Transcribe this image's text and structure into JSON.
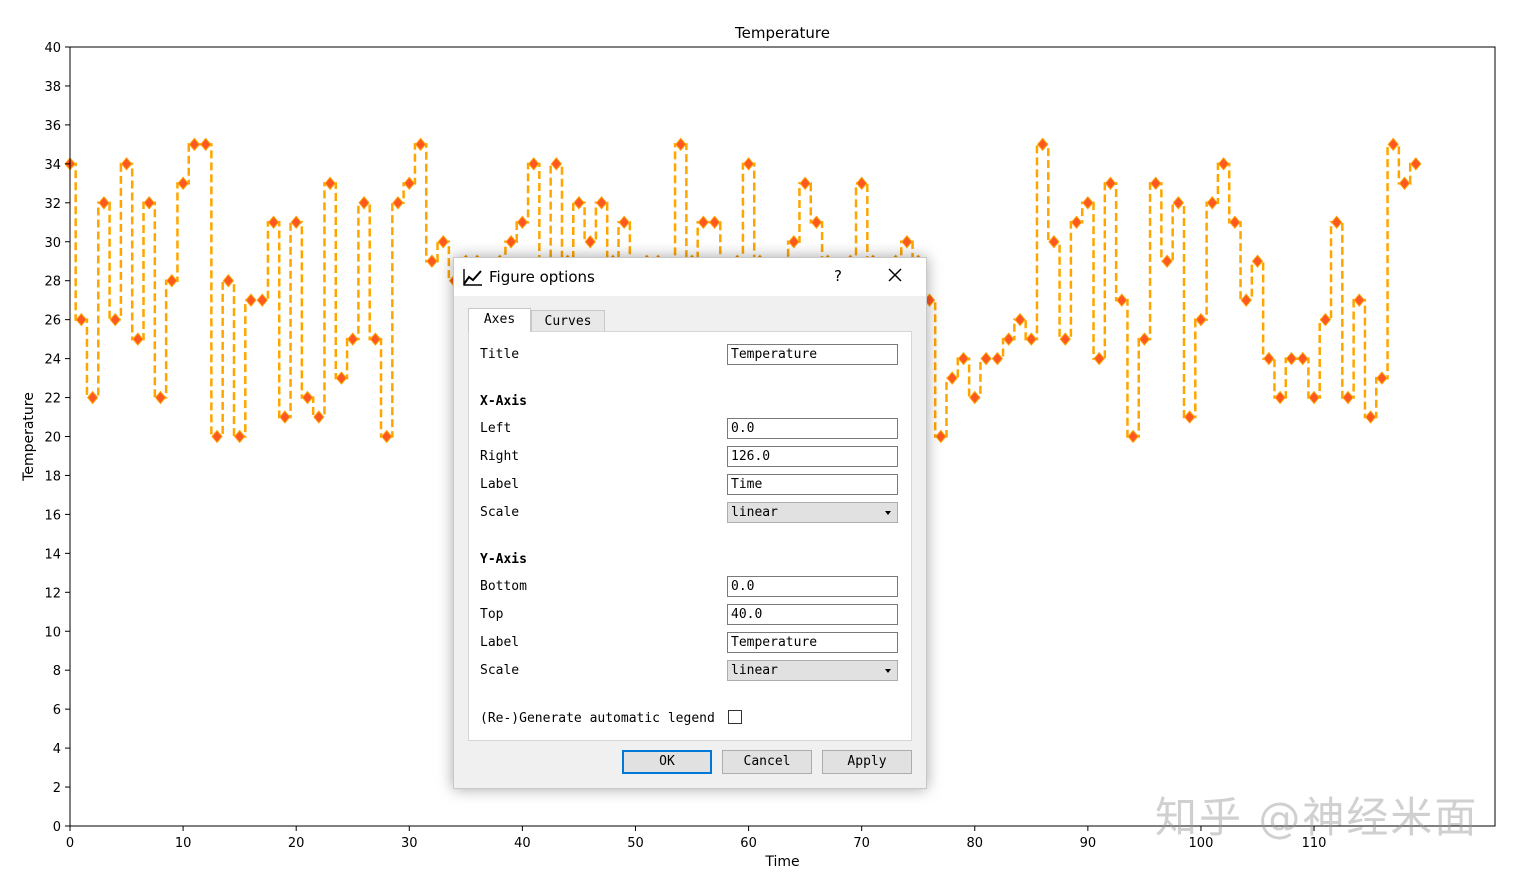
{
  "chart_data": {
    "type": "line",
    "drawstyle": "steps",
    "title": "Temperature",
    "xlabel": "Time",
    "ylabel": "Temperature",
    "xlim": [
      0,
      126
    ],
    "ylim": [
      0,
      40
    ],
    "xticks": [
      0,
      10,
      20,
      30,
      40,
      50,
      60,
      70,
      80,
      90,
      100,
      110
    ],
    "yticks": [
      0,
      2,
      4,
      6,
      8,
      10,
      12,
      14,
      16,
      18,
      20,
      22,
      24,
      26,
      28,
      30,
      32,
      34,
      36,
      38,
      40
    ],
    "grid": false,
    "line_color": "#ffa500",
    "marker_color": "#ff5722",
    "series": [
      {
        "x": [
          0,
          1,
          2,
          3,
          4,
          5,
          6,
          7,
          8,
          9,
          10,
          11,
          12,
          13,
          14,
          15,
          16,
          17,
          18,
          19,
          20,
          21,
          22,
          23,
          24,
          25,
          26,
          27,
          28,
          29,
          30,
          31,
          32,
          33,
          34,
          35,
          36,
          37,
          38,
          39,
          40,
          41,
          42,
          43,
          44,
          45,
          46,
          47,
          48,
          49,
          50,
          51,
          52,
          53,
          54,
          55,
          56,
          57,
          58,
          59,
          60,
          61,
          62,
          63,
          64,
          65,
          66,
          67,
          68,
          69,
          70,
          71,
          72,
          73,
          74,
          75,
          76,
          77,
          78,
          79,
          80,
          81,
          82,
          83,
          84,
          85,
          86,
          87,
          88,
          89,
          90,
          91,
          92,
          93,
          94,
          95,
          96,
          97,
          98,
          99,
          100,
          101,
          102,
          103,
          104,
          105,
          106,
          107,
          108,
          109,
          110,
          111,
          112,
          113,
          114,
          115,
          116,
          117,
          118,
          119
        ],
        "y": [
          34,
          26,
          22,
          32,
          26,
          34,
          25,
          32,
          22,
          28,
          33,
          35,
          35,
          20,
          28,
          20,
          27,
          27,
          31,
          21,
          31,
          22,
          21,
          33,
          23,
          25,
          32,
          25,
          20,
          32,
          33,
          35,
          29,
          30,
          28,
          29,
          29,
          28,
          29,
          30,
          31,
          34,
          28,
          34,
          29,
          32,
          30,
          32,
          29,
          31,
          28,
          29,
          29,
          28,
          35,
          29,
          31,
          31,
          28,
          29,
          34,
          29,
          28,
          28,
          30,
          33,
          31,
          29,
          28,
          29,
          33,
          29,
          28,
          29,
          30,
          29,
          27,
          20,
          23,
          24,
          22,
          24,
          24,
          25,
          26,
          25,
          35,
          30,
          25,
          31,
          32,
          24,
          33,
          27,
          20,
          25,
          33,
          29,
          32,
          21,
          26,
          32,
          34,
          31,
          27,
          29,
          24,
          22,
          24,
          24,
          22,
          26,
          31,
          22,
          27,
          21,
          23,
          35,
          33,
          34
        ]
      }
    ]
  },
  "dialog": {
    "title": "Figure options",
    "help_label": "?",
    "tabs": [
      {
        "label": "Axes"
      },
      {
        "label": "Curves"
      }
    ],
    "fields": {
      "title_label": "Title",
      "title_value": "Temperature",
      "x_axis_header": "X-Axis",
      "x_left_label": "Left",
      "x_left_value": "0.0",
      "x_right_label": "Right",
      "x_right_value": "126.0",
      "x_label_label": "Label",
      "x_label_value": "Time",
      "x_scale_label": "Scale",
      "x_scale_value": "linear",
      "y_axis_header": "Y-Axis",
      "y_bottom_label": "Bottom",
      "y_bottom_value": "0.0",
      "y_top_label": "Top",
      "y_top_value": "40.0",
      "y_label_label": "Label",
      "y_label_value": "Temperature",
      "y_scale_label": "Scale",
      "y_scale_value": "linear",
      "legend_label": "(Re-)Generate automatic legend",
      "legend_checked": false
    },
    "buttons": {
      "ok": "OK",
      "cancel": "Cancel",
      "apply": "Apply"
    }
  },
  "watermark": "知乎 @神经米面",
  "icons": {
    "dialog_icon": "line-chart-icon",
    "close": "close-icon",
    "combo_arrow": "chevron-down-icon"
  }
}
